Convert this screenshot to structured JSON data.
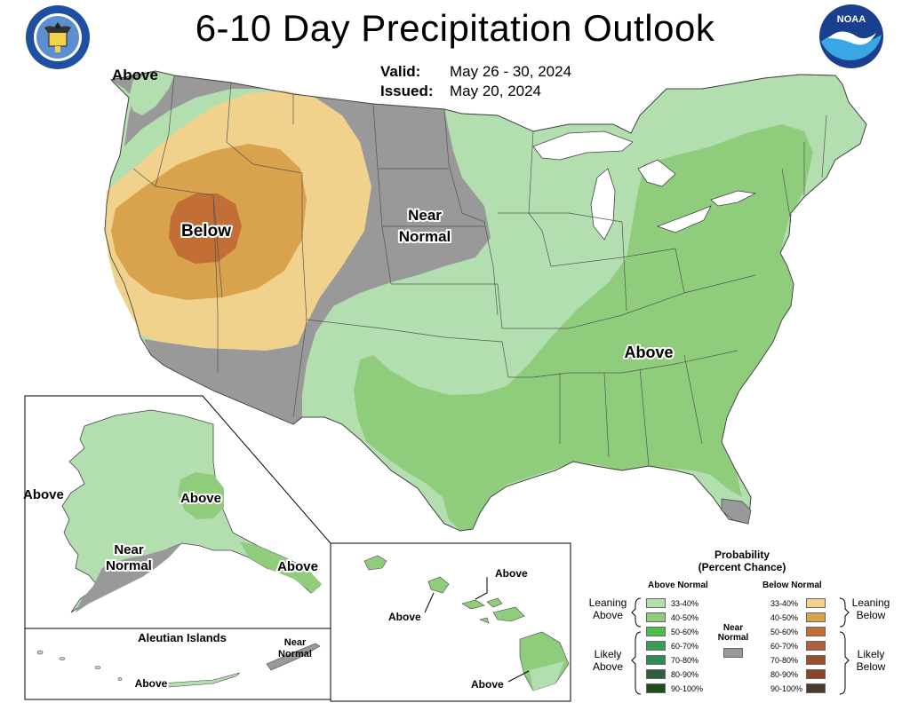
{
  "title": "6-10 Day Precipitation Outlook",
  "valid_label": "Valid:",
  "valid_value": "May 26 - 30, 2024",
  "issued_label": "Issued:",
  "issued_value": "May 20, 2024",
  "logos": {
    "left": "commerce-seal-icon",
    "right": "noaa-logo-icon"
  },
  "map_labels": {
    "above_nw": "Above",
    "below_west": "Below",
    "near_normal_plains_1": "Near",
    "near_normal_plains_2": "Normal",
    "above_east": "Above",
    "ak_above_west": "Above",
    "ak_above_interior": "Above",
    "ak_near_normal_1": "Near",
    "ak_near_normal_2": "Normal",
    "ak_above_southeast": "Above",
    "aleutian_title": "Aleutian Islands",
    "aleutian_near_1": "Near",
    "aleutian_near_2": "Normal",
    "aleutian_above": "Above",
    "hi_above_ne": "Above",
    "hi_above_w": "Above",
    "hi_above_s": "Above"
  },
  "legend": {
    "title_1": "Probability",
    "title_2": "(Percent Chance)",
    "above_header": "Above Normal",
    "below_header": "Below Normal",
    "near_label_1": "Near",
    "near_label_2": "Normal",
    "leaning_above_1": "Leaning",
    "leaning_above_2": "Above",
    "likely_above_1": "Likely",
    "likely_above_2": "Above",
    "leaning_below_1": "Leaning",
    "leaning_below_2": "Below",
    "likely_below_1": "Likely",
    "likely_below_2": "Below",
    "above_bins": [
      {
        "label": "33-40%",
        "color": "#b3deb0"
      },
      {
        "label": "40-50%",
        "color": "#8fcd7d"
      },
      {
        "label": "50-60%",
        "color": "#4dbd4d"
      },
      {
        "label": "60-70%",
        "color": "#3a9a5a"
      },
      {
        "label": "70-80%",
        "color": "#2e8b57"
      },
      {
        "label": "80-90%",
        "color": "#2f5f3f"
      },
      {
        "label": "90-100%",
        "color": "#1e4d1e"
      }
    ],
    "below_bins": [
      {
        "label": "33-40%",
        "color": "#f1d28d"
      },
      {
        "label": "40-50%",
        "color": "#d9a24d"
      },
      {
        "label": "50-60%",
        "color": "#c26e36"
      },
      {
        "label": "60-70%",
        "color": "#b06040"
      },
      {
        "label": "70-80%",
        "color": "#9a4f31"
      },
      {
        "label": "80-90%",
        "color": "#8a4526"
      },
      {
        "label": "90-100%",
        "color": "#4a3a30"
      }
    ],
    "near_color": "#999999"
  }
}
